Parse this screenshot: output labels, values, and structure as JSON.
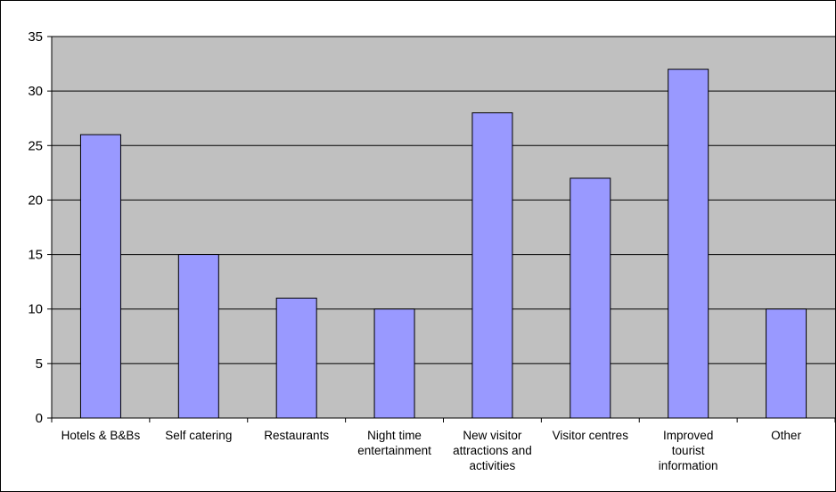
{
  "chart_data": {
    "type": "bar",
    "title": "",
    "xlabel": "",
    "ylabel": "",
    "categories": [
      [
        "Hotels & B&Bs"
      ],
      [
        "Self catering"
      ],
      [
        "Restaurants"
      ],
      [
        "Night time",
        "entertainment"
      ],
      [
        "New visitor",
        "attractions and",
        "activities"
      ],
      [
        "Visitor centres"
      ],
      [
        "Improved",
        "tourist",
        "information"
      ],
      [
        "Other"
      ]
    ],
    "values": [
      26,
      15,
      11,
      10,
      28,
      22,
      32,
      10
    ],
    "ylim": [
      0,
      35
    ],
    "yticks": [
      0,
      5,
      10,
      15,
      20,
      25,
      30,
      35
    ],
    "grid": true,
    "legend": "none",
    "colors": {
      "bar_fill": "#9999ff",
      "bar_stroke": "#000000",
      "plot_background": "#c0c0c0",
      "gridline": "#000000"
    }
  }
}
